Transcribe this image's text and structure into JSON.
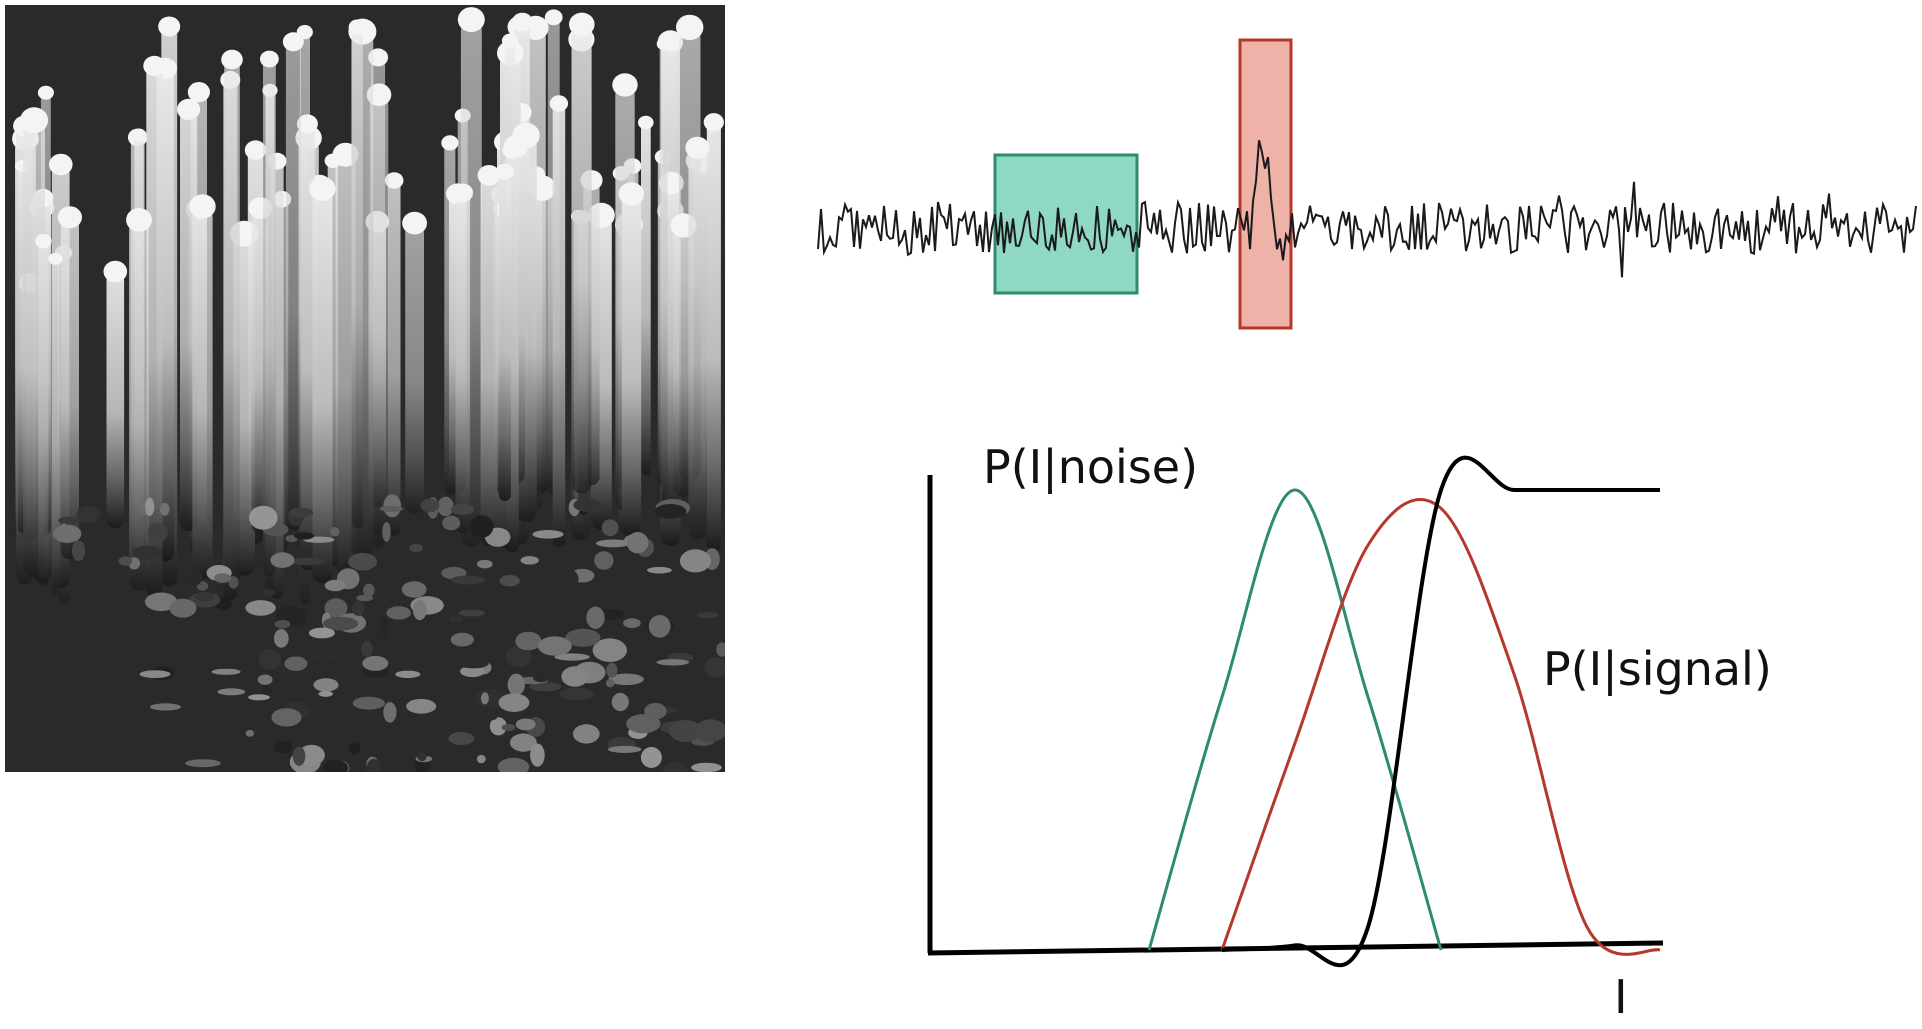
{
  "micrograph": {
    "icon": "photoreceptor-sem-image"
  },
  "trace": {
    "noise_window_color": "#8fd8c4",
    "signal_window_color": "#efb2a8"
  },
  "chart_data": {
    "type": "line",
    "xlabel": "I",
    "ylabel": "",
    "grid": false,
    "x": [
      0,
      10,
      20,
      30,
      40,
      50,
      60,
      70,
      80,
      90,
      100
    ],
    "series": [
      {
        "name": "P(I|noise)",
        "color": "#2e8b6f",
        "values": [
          0,
          0,
          0,
          0,
          0.55,
          1.0,
          0.55,
          0,
          0,
          0,
          0
        ]
      },
      {
        "name": "P(I|signal)",
        "color": "#b5382a",
        "values": [
          0,
          0,
          0,
          0,
          0,
          0.45,
          0.88,
          0.96,
          0.6,
          0.05,
          0
        ]
      },
      {
        "name": "",
        "color": "#000000",
        "values": [
          0,
          0,
          0,
          0,
          0,
          0.01,
          0.05,
          1.0,
          1.0,
          1.0,
          1.0
        ]
      }
    ],
    "annotations": {
      "noise_label": "P(I|noise)",
      "signal_label": "P(I|signal)",
      "x_axis_label": "I"
    }
  }
}
